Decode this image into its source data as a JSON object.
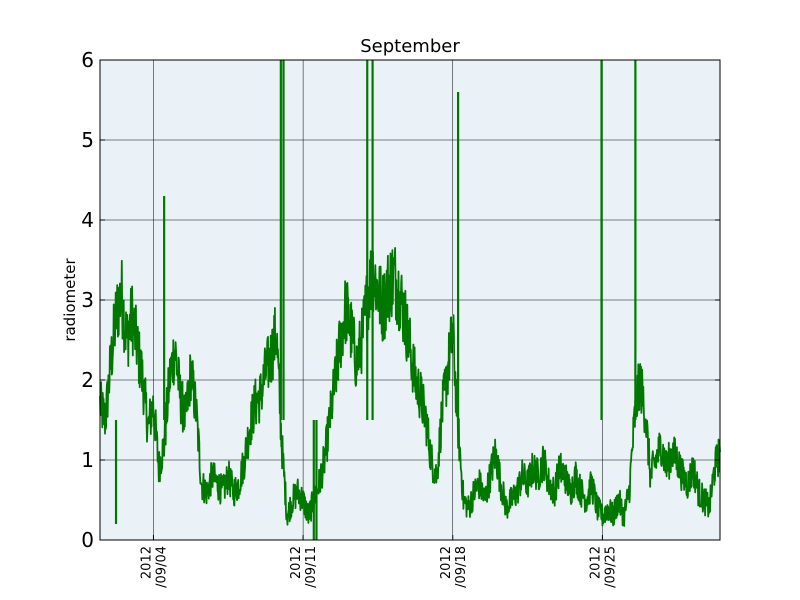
{
  "chart_data": {
    "type": "line",
    "title": "September",
    "xlabel": "",
    "ylabel": "radiometer",
    "xlim": [
      "2012-09-01T12:00",
      "2012-09-30T12:00"
    ],
    "ylim": [
      0,
      6
    ],
    "yticks": [
      0,
      1,
      2,
      3,
      4,
      5,
      6
    ],
    "xticks": [
      {
        "date": "2012-09-04",
        "line1": "2012",
        "line2": "/09/04"
      },
      {
        "date": "2012-09-11",
        "line1": "2012",
        "line2": "/09/11"
      },
      {
        "date": "2012-09-18",
        "line1": "2012",
        "line2": "/09/18"
      },
      {
        "date": "2012-09-25",
        "line1": "2012",
        "line2": "/09/25"
      }
    ],
    "grid": true,
    "colors": {
      "line": "#007800",
      "plot_bg": "#eaf2f8",
      "grid": "#000000"
    },
    "series": [
      {
        "values": [
          [
            "2012-09-01T12:00",
            1.7
          ],
          [
            "2012-09-01T18:00",
            1.5
          ],
          [
            "2012-09-02T00:00",
            2.2
          ],
          [
            "2012-09-02T06:00",
            2.8
          ],
          [
            "2012-09-02T12:00",
            3.1
          ],
          [
            "2012-09-02T18:00",
            2.5
          ],
          [
            "2012-09-03T00:00",
            2.8
          ],
          [
            "2012-09-03T06:00",
            2.4
          ],
          [
            "2012-09-03T12:00",
            2.0
          ],
          [
            "2012-09-03T18:00",
            1.4
          ],
          [
            "2012-09-04T00:00",
            1.7
          ],
          [
            "2012-09-04T06:00",
            0.9
          ],
          [
            "2012-09-04T12:00",
            1.2
          ],
          [
            "2012-09-04T18:00",
            2.0
          ],
          [
            "2012-09-05T00:00",
            2.4
          ],
          [
            "2012-09-05T06:00",
            1.8
          ],
          [
            "2012-09-05T12:00",
            1.5
          ],
          [
            "2012-09-05T18:00",
            2.1
          ],
          [
            "2012-09-06T00:00",
            1.6
          ],
          [
            "2012-09-06T06:00",
            0.7
          ],
          [
            "2012-09-06T12:00",
            0.6
          ],
          [
            "2012-09-06T18:00",
            0.8
          ],
          [
            "2012-09-07T00:00",
            0.7
          ],
          [
            "2012-09-07T06:00",
            0.6
          ],
          [
            "2012-09-07T12:00",
            0.8
          ],
          [
            "2012-09-07T18:00",
            0.6
          ],
          [
            "2012-09-08T00:00",
            0.7
          ],
          [
            "2012-09-08T06:00",
            1.0
          ],
          [
            "2012-09-08T12:00",
            1.4
          ],
          [
            "2012-09-08T18:00",
            1.7
          ],
          [
            "2012-09-09T00:00",
            1.8
          ],
          [
            "2012-09-09T06:00",
            2.1
          ],
          [
            "2012-09-09T12:00",
            2.3
          ],
          [
            "2012-09-09T18:00",
            2.6
          ],
          [
            "2012-09-10T00:00",
            1.2
          ],
          [
            "2012-09-10T06:00",
            0.3
          ],
          [
            "2012-09-10T12:00",
            0.5
          ],
          [
            "2012-09-10T18:00",
            0.6
          ],
          [
            "2012-09-11T00:00",
            0.5
          ],
          [
            "2012-09-11T06:00",
            0.3
          ],
          [
            "2012-09-11T12:00",
            0.5
          ],
          [
            "2012-09-11T18:00",
            0.7
          ],
          [
            "2012-09-12T00:00",
            1.0
          ],
          [
            "2012-09-12T06:00",
            1.5
          ],
          [
            "2012-09-12T12:00",
            2.0
          ],
          [
            "2012-09-12T18:00",
            2.5
          ],
          [
            "2012-09-13T00:00",
            2.9
          ],
          [
            "2012-09-13T06:00",
            2.6
          ],
          [
            "2012-09-13T12:00",
            2.2
          ],
          [
            "2012-09-13T18:00",
            2.5
          ],
          [
            "2012-09-14T00:00",
            3.0
          ],
          [
            "2012-09-14T06:00",
            3.4
          ],
          [
            "2012-09-14T12:00",
            3.1
          ],
          [
            "2012-09-14T18:00",
            2.9
          ],
          [
            "2012-09-15T00:00",
            3.2
          ],
          [
            "2012-09-15T06:00",
            3.3
          ],
          [
            "2012-09-15T12:00",
            3.1
          ],
          [
            "2012-09-15T18:00",
            2.8
          ],
          [
            "2012-09-16T00:00",
            2.4
          ],
          [
            "2012-09-16T06:00",
            2.0
          ],
          [
            "2012-09-16T12:00",
            1.8
          ],
          [
            "2012-09-16T18:00",
            1.5
          ],
          [
            "2012-09-17T00:00",
            1.0
          ],
          [
            "2012-09-17T06:00",
            0.8
          ],
          [
            "2012-09-17T12:00",
            1.6
          ],
          [
            "2012-09-17T18:00",
            2.1
          ],
          [
            "2012-09-18T00:00",
            2.6
          ],
          [
            "2012-09-18T06:00",
            1.4
          ],
          [
            "2012-09-18T12:00",
            0.5
          ],
          [
            "2012-09-18T18:00",
            0.4
          ],
          [
            "2012-09-19T00:00",
            0.6
          ],
          [
            "2012-09-19T06:00",
            0.7
          ],
          [
            "2012-09-19T12:00",
            0.5
          ],
          [
            "2012-09-19T18:00",
            0.8
          ],
          [
            "2012-09-20T00:00",
            1.1
          ],
          [
            "2012-09-20T06:00",
            0.7
          ],
          [
            "2012-09-20T12:00",
            0.4
          ],
          [
            "2012-09-20T18:00",
            0.5
          ],
          [
            "2012-09-21T00:00",
            0.6
          ],
          [
            "2012-09-21T06:00",
            0.8
          ],
          [
            "2012-09-21T12:00",
            0.7
          ],
          [
            "2012-09-21T18:00",
            0.9
          ],
          [
            "2012-09-22T00:00",
            0.8
          ],
          [
            "2012-09-22T06:00",
            1.0
          ],
          [
            "2012-09-22T12:00",
            0.7
          ],
          [
            "2012-09-22T18:00",
            0.6
          ],
          [
            "2012-09-23T00:00",
            0.9
          ],
          [
            "2012-09-23T06:00",
            0.8
          ],
          [
            "2012-09-23T12:00",
            0.6
          ],
          [
            "2012-09-23T18:00",
            0.8
          ],
          [
            "2012-09-24T00:00",
            0.6
          ],
          [
            "2012-09-24T06:00",
            0.5
          ],
          [
            "2012-09-24T12:00",
            0.7
          ],
          [
            "2012-09-24T18:00",
            0.4
          ],
          [
            "2012-09-25T00:00",
            0.3
          ],
          [
            "2012-09-25T06:00",
            0.4
          ],
          [
            "2012-09-25T12:00",
            0.3
          ],
          [
            "2012-09-25T18:00",
            0.5
          ],
          [
            "2012-09-26T00:00",
            0.3
          ],
          [
            "2012-09-26T06:00",
            0.6
          ],
          [
            "2012-09-26T12:00",
            1.5
          ],
          [
            "2012-09-26T18:00",
            2.0
          ],
          [
            "2012-09-27T00:00",
            1.6
          ],
          [
            "2012-09-27T06:00",
            0.8
          ],
          [
            "2012-09-27T12:00",
            1.0
          ],
          [
            "2012-09-27T18:00",
            1.2
          ],
          [
            "2012-09-28T00:00",
            0.9
          ],
          [
            "2012-09-28T06:00",
            1.1
          ],
          [
            "2012-09-28T12:00",
            1.0
          ],
          [
            "2012-09-28T18:00",
            0.8
          ],
          [
            "2012-09-29T00:00",
            0.7
          ],
          [
            "2012-09-29T06:00",
            0.9
          ],
          [
            "2012-09-29T12:00",
            0.6
          ],
          [
            "2012-09-29T18:00",
            0.5
          ],
          [
            "2012-09-30T00:00",
            0.4
          ],
          [
            "2012-09-30T06:00",
            0.9
          ],
          [
            "2012-09-30T12:00",
            1.1
          ]
        ]
      }
    ],
    "spikes": [
      {
        "date": "2012-09-02T06:00",
        "value": 0.2
      },
      {
        "date": "2012-09-04T12:00",
        "value": 4.3
      },
      {
        "date": "2012-09-09T23:00",
        "value": 6.0
      },
      {
        "date": "2012-09-10T02:00",
        "value": 6.0
      },
      {
        "date": "2012-09-11T12:00",
        "value": 0.0
      },
      {
        "date": "2012-09-11T15:00",
        "value": 0.0
      },
      {
        "date": "2012-09-14T00:00",
        "value": 6.0
      },
      {
        "date": "2012-09-14T06:00",
        "value": 6.0
      },
      {
        "date": "2012-09-18T06:00",
        "value": 5.6
      },
      {
        "date": "2012-09-24T23:00",
        "value": 6.0
      },
      {
        "date": "2012-09-26T13:00",
        "value": 6.0
      }
    ]
  }
}
